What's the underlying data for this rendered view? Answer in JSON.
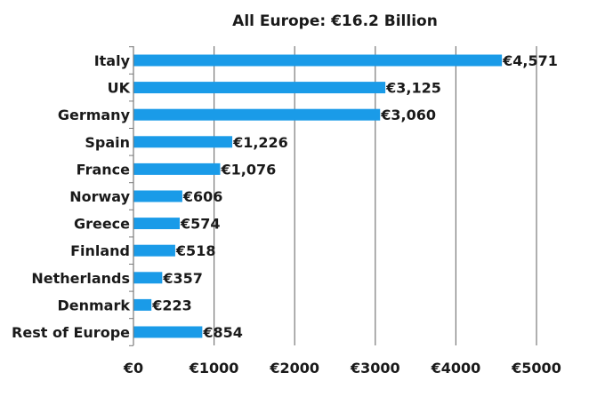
{
  "chart_data": {
    "type": "bar",
    "orientation": "horizontal",
    "title": "All Europe: €16.2 Billion",
    "categories": [
      "Italy",
      "UK",
      "Germany",
      "Spain",
      "France",
      "Norway",
      "Greece",
      "Finland",
      "Netherlands",
      "Denmark",
      "Rest of Europe"
    ],
    "values": [
      4571,
      3125,
      3060,
      1226,
      1076,
      606,
      574,
      518,
      357,
      223,
      854
    ],
    "value_labels": [
      "€4,571",
      "€3,125",
      "€3,060",
      "€1,226",
      "€1,076",
      "€606",
      "€574",
      "€518",
      "€357",
      "€223",
      "€854"
    ],
    "xlim": [
      0,
      5000
    ],
    "xticks": [
      0,
      1000,
      2000,
      3000,
      4000,
      5000
    ],
    "xtick_labels": [
      "€0",
      "€1000",
      "€2000",
      "€3000",
      "€4000",
      "€5000"
    ],
    "xlabel": "",
    "ylabel": "",
    "grid": "vertical",
    "bar_color": "#1a9be8",
    "grid_color": "#7a7a7a"
  }
}
